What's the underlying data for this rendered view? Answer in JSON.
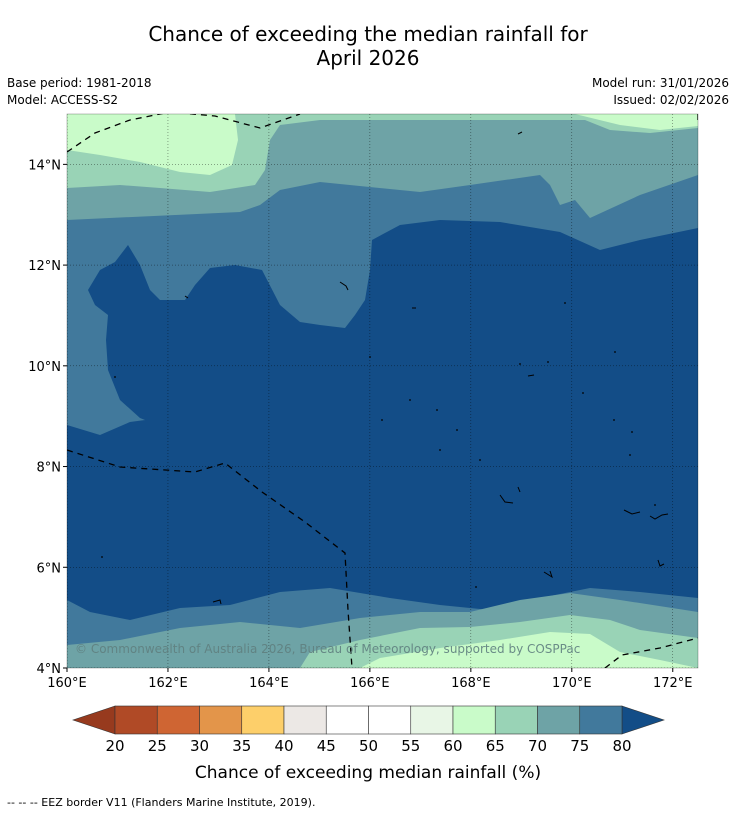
{
  "title_line1": "Chance of exceeding the median rainfall for",
  "title_line2": "April 2026",
  "meta": {
    "base_period": "Base period: 1981-2018",
    "model": "Model: ACCESS-S2",
    "model_run": "Model run: 31/01/2026",
    "issued": "Issued: 02/02/2026"
  },
  "copyright": "© Commonwealth of Australia 2026, Bureau of Meteorology, supported by COSPPac",
  "footer": "--  --  -- EEZ border V11 (Flanders Marine Institute, 2019).",
  "chart_data": {
    "type": "heatmap",
    "title": "Chance of exceeding the median rainfall for April 2026",
    "x_range": [
      160,
      172.5
    ],
    "y_range": [
      4,
      15
    ],
    "x_ticks": [
      {
        "value": 160,
        "label": "160°E"
      },
      {
        "value": 162,
        "label": "162°E"
      },
      {
        "value": 164,
        "label": "164°E"
      },
      {
        "value": 166,
        "label": "166°E"
      },
      {
        "value": 168,
        "label": "168°E"
      },
      {
        "value": 170,
        "label": "170°E"
      },
      {
        "value": 172,
        "label": "172°E"
      }
    ],
    "y_ticks": [
      {
        "value": 4,
        "label": "4°N"
      },
      {
        "value": 6,
        "label": "6°N"
      },
      {
        "value": 8,
        "label": "8°N"
      },
      {
        "value": 10,
        "label": "10°N"
      },
      {
        "value": 12,
        "label": "12°N"
      },
      {
        "value": 14,
        "label": "14°N"
      }
    ],
    "colorbar": {
      "label": "Chance of exceeding median rainfall (%)",
      "bounds": [
        20,
        25,
        30,
        35,
        40,
        45,
        50,
        55,
        60,
        65,
        70,
        75,
        80
      ],
      "tick_labels": [
        "20",
        "25",
        "30",
        "35",
        "40",
        "45",
        "50",
        "55",
        "60",
        "65",
        "70",
        "75",
        "80"
      ],
      "under_color": "#973a1e",
      "over_color": "#134d87",
      "colors": [
        "#b04a26",
        "#cf6533",
        "#e3954a",
        "#fdcf6a",
        "#ece8e5",
        "#ffffff",
        "#ffffff",
        "#e8f6e6",
        "#c9fbc9",
        "#99d3b6",
        "#6ea3a6",
        "#41799c"
      ]
    },
    "contour_levels_shown": [
      60,
      65,
      70,
      75,
      80
    ]
  }
}
